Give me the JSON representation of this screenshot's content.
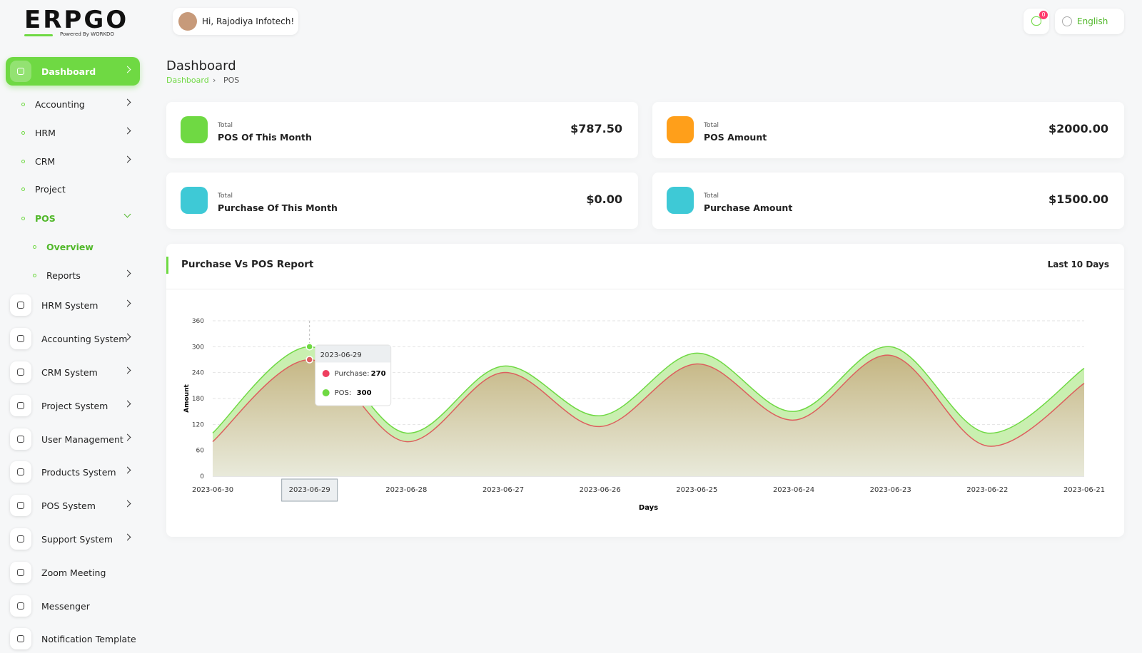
{
  "logo": {
    "brand": "ERPGO",
    "tagline": "Powered By WORKDO"
  },
  "header": {
    "greeting": "Hi, Rajodiya Infotech!",
    "notifications": 0,
    "language": "English"
  },
  "sidebar": {
    "items": [
      "Dashboard",
      "Accounting",
      "HRM",
      "CRM",
      "Project",
      "POS",
      "Overview",
      "Reports",
      "HRM System",
      "Accounting System",
      "CRM System",
      "Project System",
      "User Management",
      "Products System",
      "POS System",
      "Support System",
      "Zoom Meeting",
      "Messenger",
      "Notification Template"
    ]
  },
  "page": {
    "title": "Dashboard",
    "breadcrumb": [
      "Dashboard",
      "POS"
    ]
  },
  "cards": [
    {
      "label": "Total",
      "title": "POS Of This Month",
      "value": "$787.50"
    },
    {
      "label": "Total",
      "title": "POS Amount",
      "value": "$2000.00"
    },
    {
      "label": "Total",
      "title": "Purchase Of This Month",
      "value": "$0.00"
    },
    {
      "label": "Total",
      "title": "Purchase Amount",
      "value": "$1500.00"
    }
  ],
  "chart_data": {
    "type": "area",
    "title": "Purchase Vs POS Report",
    "period": "Last 10 Days",
    "xlabel": "Days",
    "ylabel": "Amount",
    "categories": [
      "2023-06-30",
      "2023-06-29",
      "2023-06-28",
      "2023-06-27",
      "2023-06-26",
      "2023-06-25",
      "2023-06-24",
      "2023-06-23",
      "2023-06-22",
      "2023-06-21"
    ],
    "series": [
      {
        "name": "Purchase",
        "color": "#dd5e5e",
        "values": [
          80,
          270,
          80,
          240,
          115,
          260,
          130,
          280,
          70,
          215
        ]
      },
      {
        "name": "POS",
        "color": "#6fd943",
        "values": [
          100,
          300,
          100,
          255,
          140,
          285,
          150,
          300,
          100,
          250
        ]
      }
    ],
    "ylim": [
      0,
      360
    ],
    "yticks": [
      0,
      60,
      120,
      180,
      240,
      300,
      360
    ],
    "grid": true,
    "tooltip": {
      "title": "2023-06-29",
      "items": [
        {
          "label": "Purchase:",
          "value": 270
        },
        {
          "label": "POS:",
          "value": 300
        }
      ]
    }
  }
}
